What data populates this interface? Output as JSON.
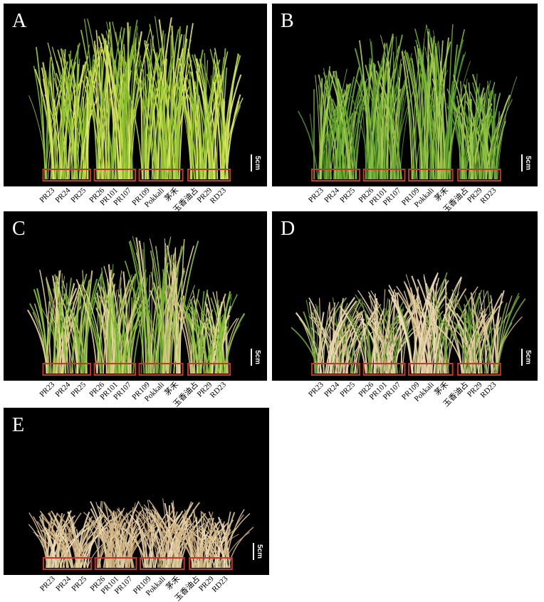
{
  "panels": [
    {
      "label": "A",
      "scale": "5cm",
      "varieties": [
        "PR23",
        "PR24",
        "PR25",
        "PR26",
        "PR101",
        "PR107",
        "PR109",
        "Pokkali",
        "茅禾",
        "玉香油占",
        "PR29",
        "RD23"
      ]
    },
    {
      "label": "B",
      "scale": "5cm",
      "varieties": [
        "PR23",
        "PR24",
        "PR25",
        "PR26",
        "PR101",
        "PR107",
        "PR109",
        "Pokkali",
        "茅禾",
        "玉香油占",
        "PR29",
        "RD23"
      ]
    },
    {
      "label": "C",
      "scale": "5cm",
      "varieties": [
        "PR23",
        "PR24",
        "PR25",
        "PR26",
        "PR101",
        "PR107",
        "PR109",
        "Pokkali",
        "茅禾",
        "玉香油占",
        "PR29",
        "RD23"
      ]
    },
    {
      "label": "D",
      "scale": "5cm",
      "varieties": [
        "PR23",
        "PR24",
        "PR25",
        "PR26",
        "PR101",
        "PR107",
        "PR109",
        "Pokkali",
        "茅禾",
        "玉香油占",
        "PR29",
        "RD23"
      ]
    },
    {
      "label": "E",
      "scale": "5cm",
      "varieties": [
        "PR23",
        "PR24",
        "PR25",
        "PR26",
        "PR101",
        "PR107",
        "PR109",
        "Pokkali",
        "茅禾",
        "玉香油占",
        "PR29",
        "RD23"
      ]
    }
  ]
}
